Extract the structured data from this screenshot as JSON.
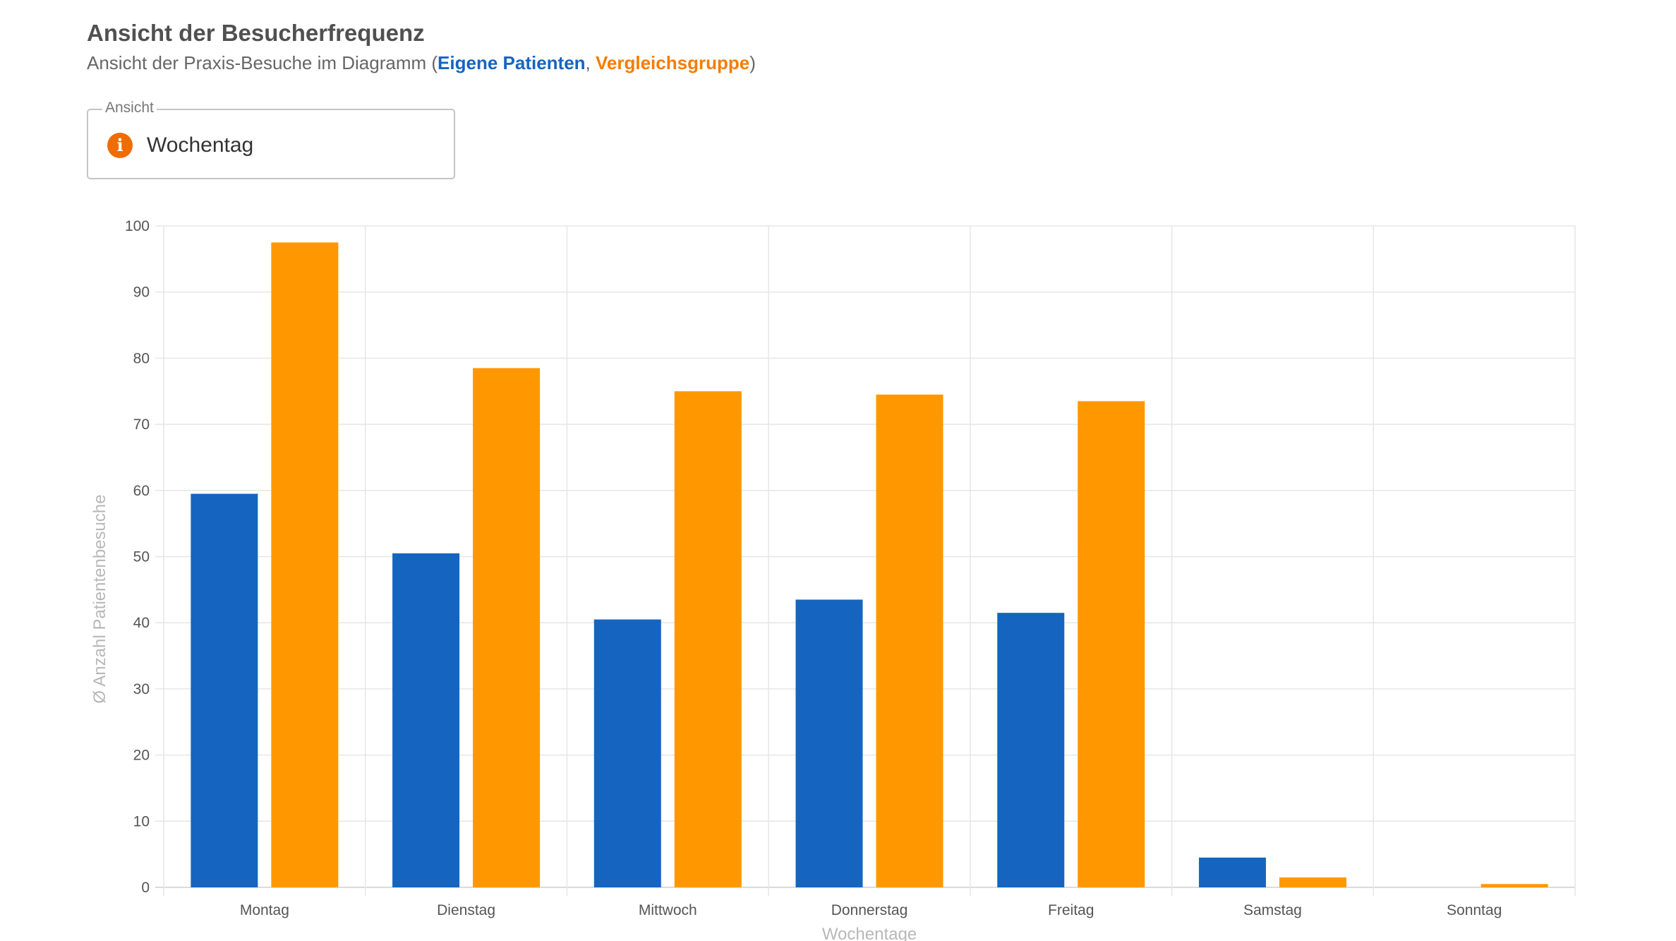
{
  "header": {
    "title": "Ansicht der Besucherfrequenz",
    "subtitle_prefix": "Ansicht der Praxis-Besuche im Diagramm (",
    "subtitle_own": "Eigene Patienten",
    "subtitle_separator": ", ",
    "subtitle_compare": "Vergleichsgruppe",
    "subtitle_suffix": ")"
  },
  "view_select": {
    "label": "Ansicht",
    "value": "Wochentag",
    "icon": "info-icon",
    "icon_glyph": "i"
  },
  "colors": {
    "own": "#1565c0",
    "compare": "#ff9800",
    "icon": "#ef6c00"
  },
  "chart_data": {
    "type": "bar",
    "categories": [
      "Montag",
      "Dienstag",
      "Mittwoch",
      "Donnerstag",
      "Freitag",
      "Samstag",
      "Sonntag"
    ],
    "series": [
      {
        "name": "Eigene Patienten",
        "color": "#1565c0",
        "values": [
          59.5,
          50.5,
          40.5,
          43.5,
          41.5,
          4.5,
          0
        ]
      },
      {
        "name": "Vergleichsgruppe",
        "color": "#ff9800",
        "values": [
          97.5,
          78.5,
          75,
          74.5,
          73.5,
          1.5,
          0.5
        ]
      }
    ],
    "xlabel": "Wochentage",
    "ylabel": "Ø Anzahl Patientenbesuche",
    "ylim": [
      0,
      100
    ],
    "yticks": [
      0,
      10,
      20,
      30,
      40,
      50,
      60,
      70,
      80,
      90,
      100
    ],
    "grid": true,
    "legend": "none"
  }
}
